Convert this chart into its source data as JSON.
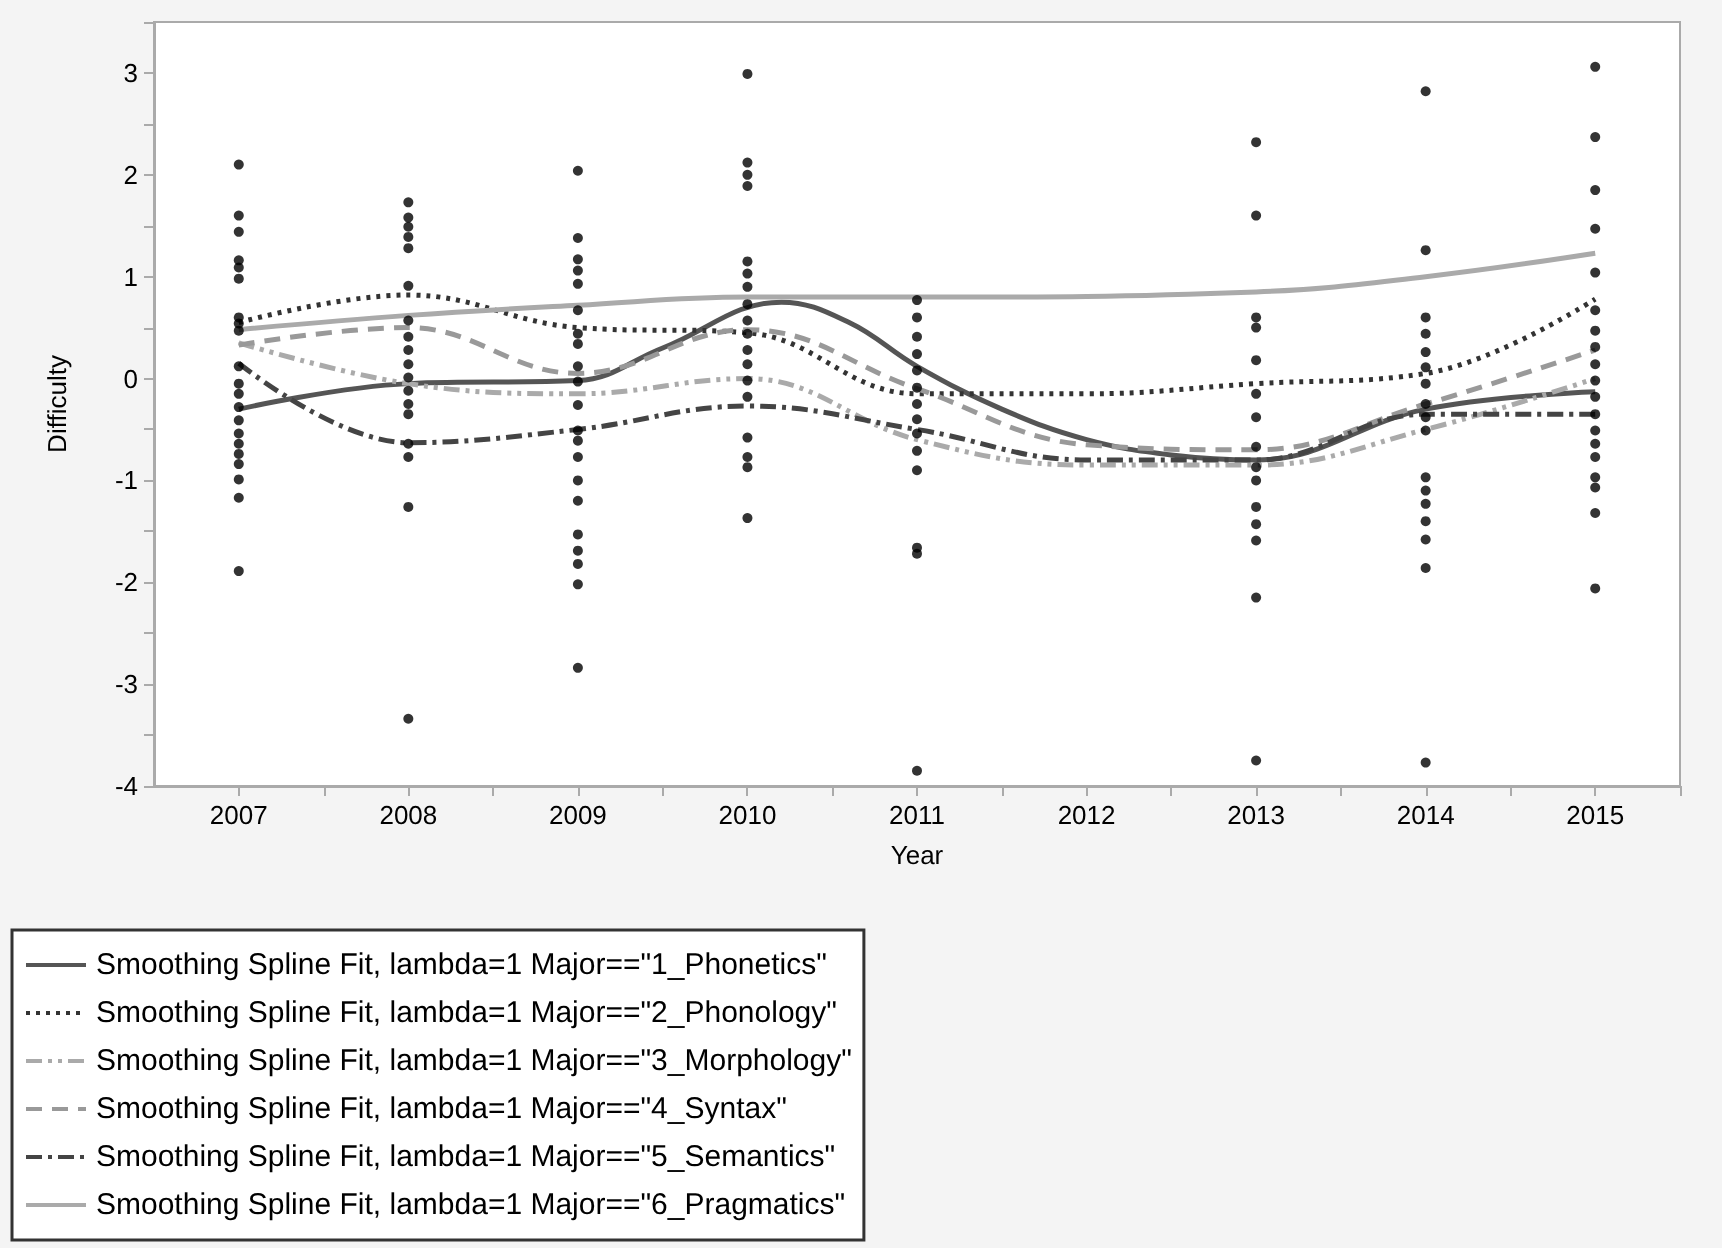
{
  "chart_data": {
    "type": "line",
    "xlabel": "Year",
    "ylabel": "Difficulty",
    "xlim": [
      2006.5,
      2015.5
    ],
    "xticks": [
      2007,
      {
        "value": 2007.5,
        "label": null
      },
      2008,
      {
        "value": 2008.5,
        "label": null
      },
      2009,
      {
        "value": 2009.5,
        "label": null
      },
      2010,
      {
        "value": 2010.5,
        "label": null
      },
      2011,
      {
        "value": 2011.5,
        "label": null
      },
      2012,
      {
        "value": 2012.5,
        "label": null
      },
      2013,
      {
        "value": 2013.5,
        "label": null
      },
      2014,
      {
        "value": 2014.5,
        "label": null
      },
      2015,
      {
        "value": 2015.5,
        "label": null
      }
    ],
    "ylim": [
      -4,
      3.5
    ],
    "yticks": [
      -4,
      {
        "value": -3.5,
        "label": null
      },
      -3,
      {
        "value": -2.5,
        "label": null
      },
      -2,
      {
        "value": -1.5,
        "label": null
      },
      -1,
      {
        "value": -0.5,
        "label": null
      },
      0,
      {
        "value": 0.5,
        "label": null
      },
      1,
      {
        "value": 1.5,
        "label": null
      },
      2,
      {
        "value": 2.5,
        "label": null
      },
      3,
      {
        "value": 3.5,
        "label": null
      }
    ],
    "grid": false,
    "legend": "bottom left",
    "series": [
      {
        "type": "scatter",
        "color": "#000000",
        "marker": "circle",
        "x": [
          2007,
          2007,
          2007,
          2007,
          2007,
          2007,
          2007,
          2007,
          2007,
          2007,
          2007,
          2007,
          2007,
          2007,
          2007,
          2007,
          2007,
          2007,
          2007,
          2007,
          2007,
          2008,
          2008,
          2008,
          2008,
          2008,
          2008,
          2008,
          2008,
          2008,
          2008,
          2008,
          2008,
          2008,
          2008,
          2008,
          2008,
          2008,
          2008,
          2009,
          2009,
          2009,
          2009,
          2009,
          2009,
          2009,
          2009,
          2009,
          2009,
          2009,
          2009,
          2009,
          2009,
          2009,
          2009,
          2009,
          2009,
          2009,
          2009,
          2009,
          2010,
          2010,
          2010,
          2010,
          2010,
          2010,
          2010,
          2010,
          2010,
          2010,
          2010,
          2010,
          2010,
          2010,
          2010,
          2010,
          2010,
          2010,
          2011,
          2011,
          2011,
          2011,
          2011,
          2011,
          2011,
          2011,
          2011,
          2011,
          2011,
          2011,
          2011,
          2011,
          2013,
          2013,
          2013,
          2013,
          2013,
          2013,
          2013,
          2013,
          2013,
          2013,
          2013,
          2013,
          2013,
          2013,
          2013,
          2014,
          2014,
          2014,
          2014,
          2014,
          2014,
          2014,
          2014,
          2014,
          2014,
          2014,
          2014,
          2014,
          2014,
          2014,
          2014,
          2014,
          2015,
          2015,
          2015,
          2015,
          2015,
          2015,
          2015,
          2015,
          2015,
          2015,
          2015,
          2015,
          2015,
          2015,
          2015,
          2015,
          2015,
          2015,
          2015
        ],
        "values": [
          2.1,
          1.6,
          1.44,
          1.16,
          1.09,
          0.98,
          0.6,
          0.54,
          0.47,
          0.12,
          -0.05,
          -0.15,
          -0.28,
          -0.41,
          -0.54,
          -0.64,
          -0.74,
          -0.84,
          -0.99,
          -1.17,
          -1.89,
          1.73,
          1.58,
          1.49,
          1.39,
          1.28,
          0.91,
          0.57,
          0.41,
          0.28,
          0.14,
          0.01,
          -0.12,
          -0.25,
          -0.35,
          -0.64,
          -0.77,
          -1.26,
          -3.34,
          2.04,
          1.38,
          1.17,
          1.06,
          0.93,
          0.67,
          0.44,
          0.34,
          0.12,
          -0.03,
          -0.26,
          -0.51,
          -0.61,
          -0.77,
          -1.0,
          -1.2,
          -1.53,
          -1.69,
          -1.82,
          -2.02,
          -2.84,
          2.99,
          2.12,
          2.0,
          1.89,
          1.15,
          1.03,
          0.9,
          0.73,
          0.57,
          0.44,
          0.28,
          0.14,
          -0.02,
          -0.18,
          -0.58,
          -0.77,
          -0.87,
          -1.37,
          0.77,
          0.6,
          0.41,
          0.24,
          0.08,
          -0.09,
          -0.25,
          -0.4,
          -0.54,
          -0.71,
          -0.9,
          -1.66,
          -1.72,
          -3.85,
          2.32,
          1.6,
          0.6,
          0.5,
          0.18,
          -0.15,
          -0.38,
          -0.67,
          -0.87,
          -1.0,
          -1.26,
          -1.43,
          -1.59,
          -2.15,
          -3.75,
          2.82,
          1.26,
          0.6,
          0.44,
          0.26,
          0.11,
          -0.05,
          -0.25,
          -0.38,
          -0.51,
          -0.97,
          -1.1,
          -1.23,
          -1.4,
          -1.58,
          -1.86,
          -3.77,
          3.06,
          2.37,
          1.85,
          1.47,
          1.04,
          0.67,
          0.47,
          0.31,
          0.14,
          -0.02,
          -0.18,
          -0.35,
          -0.51,
          -0.64,
          -0.77,
          -0.97,
          -1.07,
          -1.32,
          -2.06
        ]
      },
      {
        "name": "Smoothing Spline Fit, lambda=1 Major==\"1_Phonetics\"",
        "color": "#555555",
        "line_style": "solid",
        "marker": "none",
        "x": [
          2007,
          2008,
          2009,
          2009.5,
          2010.2,
          2010.6,
          2011,
          2011.5,
          2012,
          2012.5,
          2013,
          2014,
          2015
        ],
        "values": [
          -0.3,
          -0.05,
          -0.02,
          0.3,
          0.75,
          0.55,
          0.12,
          -0.3,
          -0.6,
          -0.75,
          -0.8,
          -0.3,
          -0.13
        ]
      },
      {
        "name": "Smoothing Spline Fit, lambda=1 Major==\"2_Phonology\"",
        "color": "#333333",
        "line_style": "dotted",
        "marker": "none",
        "x": [
          2007,
          2008,
          2009,
          2010,
          2011,
          2012,
          2013,
          2014,
          2015
        ],
        "values": [
          0.55,
          0.82,
          0.5,
          0.45,
          -0.15,
          -0.15,
          -0.05,
          0.05,
          0.78
        ]
      },
      {
        "name": "Smoothing Spline Fit, lambda=1 Major==\"3_Morphology\"",
        "color": "#aaaaaa",
        "line_style": "dashdotdot",
        "marker": "none",
        "x": [
          2007,
          2008,
          2009,
          2010,
          2011,
          2012,
          2013,
          2014,
          2015
        ],
        "values": [
          0.35,
          -0.05,
          -0.15,
          0.0,
          -0.6,
          -0.85,
          -0.85,
          -0.5,
          0.0
        ]
      },
      {
        "name": "Smoothing Spline Fit, lambda=1 Major==\"4_Syntax\"",
        "color": "#999999",
        "line_style": "dashed",
        "marker": "none",
        "x": [
          2007,
          2008,
          2009,
          2010,
          2011,
          2012,
          2013,
          2014,
          2015
        ],
        "values": [
          0.33,
          0.5,
          0.05,
          0.48,
          -0.1,
          -0.65,
          -0.7,
          -0.25,
          0.28
        ]
      },
      {
        "name": "Smoothing Spline Fit, lambda=1 Major==\"5_Semantics\"",
        "color": "#444444",
        "line_style": "dashdot",
        "marker": "none",
        "x": [
          2007,
          2008,
          2009,
          2010,
          2011,
          2012,
          2013,
          2014,
          2015
        ],
        "values": [
          0.15,
          -0.63,
          -0.5,
          -0.27,
          -0.5,
          -0.8,
          -0.8,
          -0.35,
          -0.35
        ]
      },
      {
        "name": "Smoothing Spline Fit, lambda=1 Major==\"6_Pragmatics\"",
        "color": "#aaaaaa",
        "line_style": "solid",
        "marker": "none",
        "x": [
          2007,
          2008,
          2009,
          2010,
          2011,
          2013,
          2014,
          2015
        ],
        "values": [
          0.48,
          0.62,
          0.72,
          0.8,
          0.8,
          0.85,
          1.0,
          1.23
        ]
      }
    ]
  }
}
